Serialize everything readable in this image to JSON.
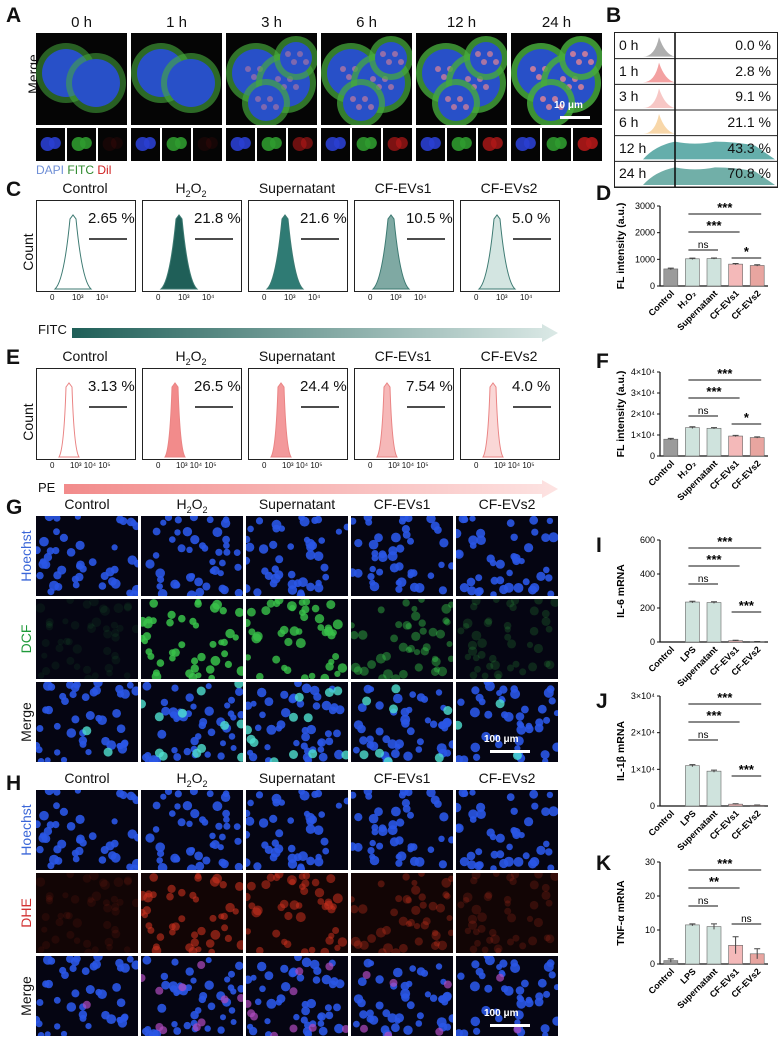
{
  "panels": {
    "A": "A",
    "B": "B",
    "C": "C",
    "D": "D",
    "E": "E",
    "F": "F",
    "G": "G",
    "H": "H",
    "I": "I",
    "J": "J",
    "K": "K"
  },
  "panelA": {
    "times": [
      "0 h",
      "1 h",
      "3 h",
      "6 h",
      "12 h",
      "24 h"
    ],
    "row_label": "Merge",
    "scale": "10 μm",
    "legend": {
      "dapi": "DAPI",
      "fitc": "FITC",
      "dil": "Dil"
    }
  },
  "panelB": {
    "times": [
      "0 h",
      "1 h",
      "3 h",
      "6 h",
      "12 h",
      "24 h"
    ],
    "percents": [
      "0.0 %",
      "2.8 %",
      "9.1 %",
      "21.1 %",
      "43.3 %",
      "70.8 %"
    ],
    "colors": [
      "#9a9a9a",
      "#f08a8a",
      "#f5b9b6",
      "#f6cd93",
      "#3e9a96",
      "#4e9b92"
    ]
  },
  "panelC": {
    "groups": [
      "Control",
      "H2O2",
      "Supernatant",
      "CF-EVs1",
      "CF-EVs2"
    ],
    "percents": [
      "2.65 %",
      "21.8 %",
      "21.6 %",
      "10.5 %",
      "5.0 %"
    ],
    "ylabel": "Count",
    "xlabel": "FITC",
    "ticks": [
      "0",
      "10³",
      "10⁴"
    ],
    "fill": [
      "#ffffff",
      "#1f5f58",
      "#2f7b74",
      "#7fa9a3",
      "#d3e5e1"
    ]
  },
  "panelE": {
    "groups": [
      "Control",
      "H2O2",
      "Supernatant",
      "CF-EVs1",
      "CF-EVs2"
    ],
    "percents": [
      "3.13 %",
      "26.5 %",
      "24.4 %",
      "7.54 %",
      "4.0 %"
    ],
    "ylabel": "Count",
    "xlabel": "PE",
    "ticks": [
      "0",
      "10³ 10⁴ 10⁵"
    ],
    "fill": [
      "#ffffff",
      "#f28b8b",
      "#f3999b",
      "#f6b8b8",
      "#fad7d6"
    ]
  },
  "h2o2_label": {
    "base": "H",
    "sub": "2",
    "mid": "O",
    "sub2": "2"
  },
  "panelG": {
    "groups": [
      "Control",
      "H2O2",
      "Supernatant",
      "CF-EVs1",
      "CF-EVs2"
    ],
    "rows": [
      "Hoechst",
      "DCF",
      "Merge"
    ],
    "scale": "100 μm"
  },
  "panelH": {
    "groups": [
      "Control",
      "H2O2",
      "Supernatant",
      "CF-EVs1",
      "CF-EVs2"
    ],
    "rows": [
      "Hoechst",
      "DHE",
      "Merge"
    ],
    "scale": "100 μm"
  },
  "chart_data": [
    {
      "panel": "D",
      "type": "bar",
      "categories": [
        "Control",
        "H2O2",
        "Supernatant",
        "CF-EVs1",
        "CF-EVs2"
      ],
      "values": [
        640,
        1020,
        1030,
        820,
        770
      ],
      "errors": [
        30,
        25,
        20,
        25,
        25
      ],
      "colors": [
        "#9b9b9b",
        "#cfe3dd",
        "#cfe3dd",
        "#f4b9b9",
        "#e8a5a0"
      ],
      "ylabel": "FL intensity (a.u.)",
      "ylim": [
        0,
        3000
      ],
      "yticks": [
        "0",
        "1000",
        "2000",
        "3000"
      ],
      "sig": [
        "***",
        "***",
        "ns",
        "*"
      ]
    },
    {
      "panel": "F",
      "type": "bar",
      "categories": [
        "Control",
        "H2O2",
        "Supernatant",
        "CF-EVs1",
        "CF-EVs2"
      ],
      "values": [
        8000,
        13500,
        13200,
        9500,
        8800
      ],
      "errors": [
        400,
        400,
        300,
        300,
        300
      ],
      "colors": [
        "#9b9b9b",
        "#cfe3dd",
        "#cfe3dd",
        "#f4b9b9",
        "#e8a5a0"
      ],
      "ylabel": "FL intensity (a.u.)",
      "ylim": [
        0,
        40000
      ],
      "yticks": [
        "0",
        "1×10⁴",
        "2×10⁴",
        "3×10⁴",
        "4×10⁴"
      ],
      "sig": [
        "***",
        "***",
        "ns",
        "*"
      ]
    },
    {
      "panel": "I",
      "type": "bar",
      "categories": [
        "Control",
        "LPS",
        "Supernatant",
        "CF-EVs1",
        "CF-EVs2"
      ],
      "values": [
        0,
        235,
        232,
        8,
        2
      ],
      "errors": [
        0,
        5,
        5,
        2,
        1
      ],
      "colors": [
        "#9b9b9b",
        "#cfe3dd",
        "#cfe3dd",
        "#f4b9b9",
        "#e8a5a0"
      ],
      "ylabel": "IL-6 mRNA",
      "ylim": [
        0,
        600
      ],
      "yticks": [
        "0",
        "200",
        "400",
        "600"
      ],
      "sig": [
        "***",
        "***",
        "ns",
        "***"
      ]
    },
    {
      "panel": "J",
      "type": "bar",
      "categories": [
        "Control",
        "LPS",
        "Supernatant",
        "CF-EVs1",
        "CF-EVs2"
      ],
      "values": [
        0,
        11000,
        9500,
        500,
        200
      ],
      "errors": [
        0,
        300,
        300,
        100,
        80
      ],
      "colors": [
        "#9b9b9b",
        "#cfe3dd",
        "#cfe3dd",
        "#f4b9b9",
        "#e8a5a0"
      ],
      "ylabel": "IL-1β mRNA",
      "ylim": [
        0,
        30000
      ],
      "yticks": [
        "0",
        "1×10⁴",
        "2×10⁴",
        "3×10⁴"
      ],
      "sig": [
        "***",
        "***",
        "ns",
        "***"
      ]
    },
    {
      "panel": "K",
      "type": "bar",
      "categories": [
        "Control",
        "LPS",
        "Supernatant",
        "CF-EVs1",
        "CF-EVs2"
      ],
      "values": [
        1,
        11.5,
        11,
        5.5,
        3
      ],
      "errors": [
        0.5,
        0.3,
        0.8,
        2.5,
        1.5
      ],
      "colors": [
        "#9b9b9b",
        "#cfe3dd",
        "#cfe3dd",
        "#f4b9b9",
        "#e8a5a0"
      ],
      "ylabel": "TNF-α mRNA",
      "ylim": [
        0,
        30
      ],
      "yticks": [
        "0",
        "10",
        "20",
        "30"
      ],
      "sig": [
        "***",
        "**",
        "ns",
        "ns"
      ]
    }
  ]
}
